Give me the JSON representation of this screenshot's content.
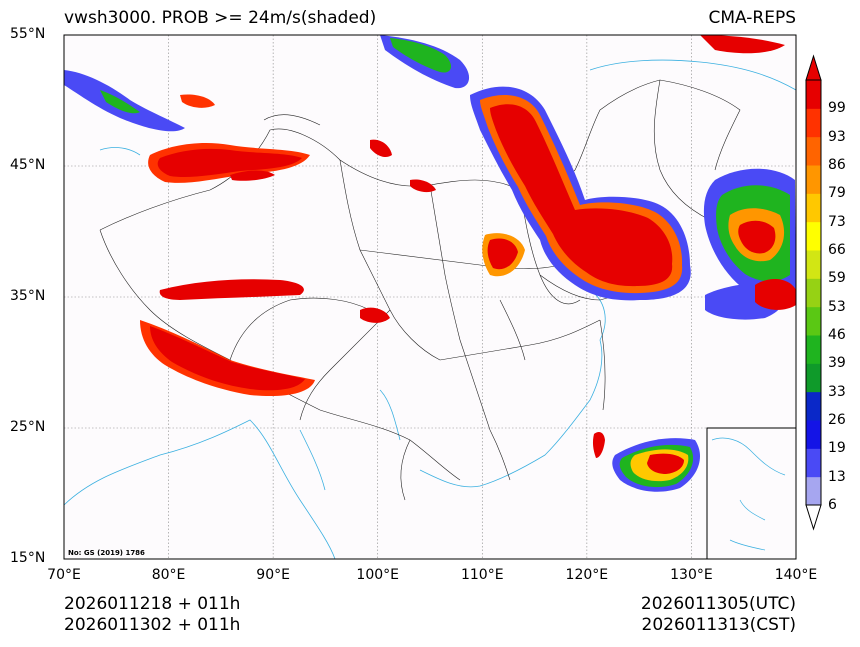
{
  "header": {
    "title": "vwsh3000. PROB >= 24m/s(shaded)",
    "model": "CMA-REPS"
  },
  "map": {
    "lat_ticks": [
      {
        "value": 55,
        "label": "55°N"
      },
      {
        "value": 45,
        "label": "45°N"
      },
      {
        "value": 35,
        "label": "35°N"
      },
      {
        "value": 25,
        "label": "25°N"
      },
      {
        "value": 15,
        "label": "15°N"
      }
    ],
    "lon_ticks": [
      {
        "value": 70,
        "label": "70°E"
      },
      {
        "value": 80,
        "label": "80°E"
      },
      {
        "value": 90,
        "label": "90°E"
      },
      {
        "value": 100,
        "label": "100°E"
      },
      {
        "value": 110,
        "label": "110°E"
      },
      {
        "value": 120,
        "label": "120°E"
      },
      {
        "value": 130,
        "label": "130°E"
      },
      {
        "value": 140,
        "label": "140°E"
      }
    ],
    "gs_note": "No: GS (2019) 1786",
    "lon_range": [
      70,
      140
    ],
    "lat_range": [
      15,
      55
    ]
  },
  "colorbar": {
    "levels": [
      "6",
      "13",
      "19",
      "26",
      "33",
      "39",
      "46",
      "53",
      "59",
      "66",
      "73",
      "79",
      "86",
      "93",
      "99"
    ],
    "colors": [
      "#a6a6f0",
      "#4a4af5",
      "#1414e6",
      "#0a28c8",
      "#0f9a2a",
      "#1fb41f",
      "#5ac814",
      "#96d214",
      "#d2e614",
      "#ffff00",
      "#ffc800",
      "#ff9600",
      "#ff6400",
      "#ff3200",
      "#e60000"
    ]
  },
  "footer": {
    "left_line1": "2026011218  +  011h",
    "left_line2": "2026011302  +  011h",
    "right_line1": "2026011305(UTC)",
    "right_line2": "2026011313(CST)"
  }
}
